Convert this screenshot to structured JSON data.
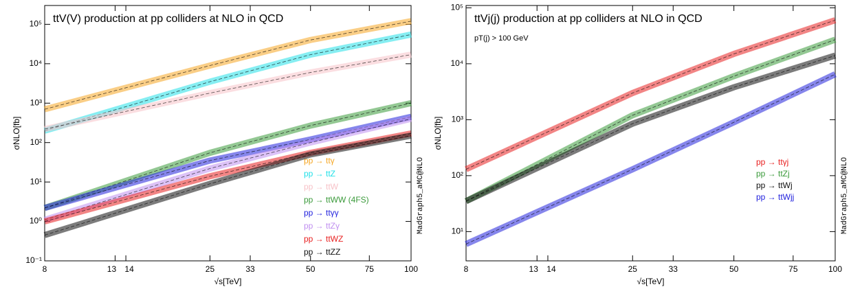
{
  "chart_data": [
    {
      "type": "line",
      "title": "ttV(V) production at pp colliders at NLO in QCD",
      "xlabel": "√s[TeV]",
      "ylabel": "σNLO[fb]",
      "watermark": "MadGraph5_aMC@NLO",
      "xscale": "log",
      "yscale": "log",
      "legend": "lower right",
      "x": [
        8,
        25,
        50,
        100
      ],
      "xlim": [
        8,
        100
      ],
      "xticks": [
        8,
        13,
        14,
        25,
        33,
        50,
        75,
        100
      ],
      "ylim": [
        0.1,
        300000
      ],
      "yticks": [
        {
          "value": 0.1,
          "label": "10⁻¹"
        },
        {
          "value": 1,
          "label": "10⁰"
        },
        {
          "value": 10,
          "label": "10¹"
        },
        {
          "value": 100,
          "label": "10²"
        },
        {
          "value": 1000,
          "label": "10³"
        },
        {
          "value": 10000,
          "label": "10⁴"
        },
        {
          "value": 100000,
          "label": "10⁵"
        }
      ],
      "series": [
        {
          "name": "pp → ttγ",
          "color": "#f5a623",
          "values": [
            700,
            9000,
            40000,
            120000
          ]
        },
        {
          "name": "pp → ttZ",
          "color": "#22e0e8",
          "values": [
            200,
            3500,
            17000,
            55000
          ]
        },
        {
          "name": "pp → ttW",
          "color": "#f7c2c8",
          "values": [
            220,
            1800,
            6000,
            17000
          ]
        },
        {
          "name": "pp → ttWW (4FS)",
          "color": "#3a9a3a",
          "values": [
            2.2,
            55,
            270,
            1000
          ]
        },
        {
          "name": "pp → ttγγ",
          "color": "#2222dd",
          "values": [
            2.2,
            35,
            120,
            450
          ]
        },
        {
          "name": "pp → ttZγ",
          "color": "#c08ff0",
          "values": [
            1.1,
            22,
            100,
            400
          ]
        },
        {
          "name": "pp → ttWZ",
          "color": "#e82020",
          "values": [
            1.0,
            14,
            55,
            170
          ]
        },
        {
          "name": "pp → ttZZ",
          "color": "#111111",
          "values": [
            0.45,
            9,
            50,
            150
          ]
        }
      ]
    },
    {
      "type": "line",
      "title": "ttVj(j) production at pp colliders at NLO in QCD",
      "annotation": "pT(j) > 100 GeV",
      "xlabel": "√s[TeV]",
      "ylabel": "σNLO[fb]",
      "watermark": "MadGraph5_aMC@NLO",
      "xscale": "log",
      "yscale": "log",
      "legend": "center right",
      "x": [
        8,
        25,
        50,
        100
      ],
      "xlim": [
        8,
        100
      ],
      "xticks": [
        8,
        13,
        14,
        25,
        33,
        50,
        75,
        100
      ],
      "ylim": [
        3,
        110000
      ],
      "yticks": [
        {
          "value": 10,
          "label": "10¹"
        },
        {
          "value": 100,
          "label": "10²"
        },
        {
          "value": 1000,
          "label": "10³"
        },
        {
          "value": 10000,
          "label": "10⁴"
        },
        {
          "value": 100000,
          "label": "10⁵"
        }
      ],
      "series": [
        {
          "name": "pp → ttγj",
          "color": "#e82020",
          "values": [
            130,
            3000,
            15000,
            60000
          ]
        },
        {
          "name": "pp → ttZj",
          "color": "#3a9a3a",
          "values": [
            35,
            1200,
            6000,
            27000
          ]
        },
        {
          "name": "pp → ttWj",
          "color": "#111111",
          "values": [
            35,
            850,
            3800,
            14000
          ]
        },
        {
          "name": "pp → ttWjj",
          "color": "#2222dd",
          "values": [
            6,
            130,
            900,
            6500
          ]
        }
      ]
    }
  ]
}
